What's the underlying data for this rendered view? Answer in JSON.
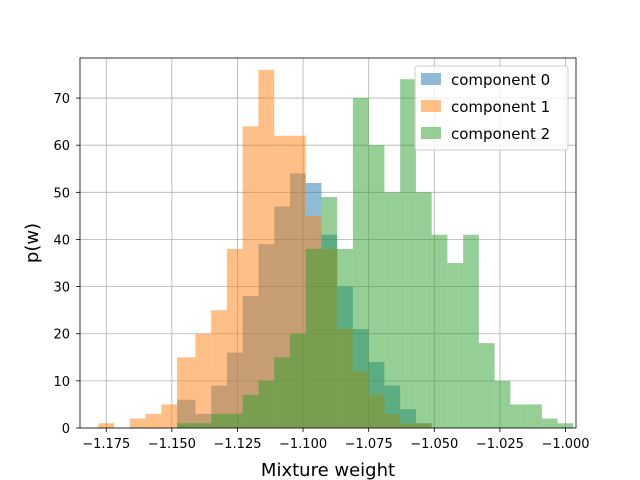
{
  "chart_data": {
    "type": "histogram",
    "xlabel": "Mixture weight",
    "ylabel": "p(w)",
    "xlim": [
      -1.185,
      -0.996
    ],
    "ylim": [
      0,
      78.5
    ],
    "xticks": [
      -1.175,
      -1.15,
      -1.125,
      -1.1,
      -1.075,
      -1.05,
      -1.025,
      -1.0
    ],
    "xtick_labels": [
      "−1.175",
      "−1.150",
      "−1.125",
      "−1.100",
      "−1.075",
      "−1.050",
      "−1.025",
      "−1.000"
    ],
    "yticks": [
      0,
      10,
      20,
      30,
      40,
      50,
      60,
      70
    ],
    "ytick_labels": [
      "0",
      "10",
      "20",
      "30",
      "40",
      "50",
      "60",
      "70"
    ],
    "grid": true,
    "legend_position": "top-right",
    "alpha": 0.5,
    "series": [
      {
        "name": "component 0",
        "color": "#1f77b4",
        "bins": [
          [
            -1.148,
            -1.141,
            6
          ],
          [
            -1.141,
            -1.135,
            3
          ],
          [
            -1.135,
            -1.129,
            9
          ],
          [
            -1.129,
            -1.123,
            16
          ],
          [
            -1.123,
            -1.117,
            28
          ],
          [
            -1.117,
            -1.111,
            39
          ],
          [
            -1.111,
            -1.105,
            47
          ],
          [
            -1.105,
            -1.099,
            54
          ],
          [
            -1.099,
            -1.093,
            52
          ],
          [
            -1.093,
            -1.087,
            41
          ],
          [
            -1.087,
            -1.081,
            30
          ],
          [
            -1.081,
            -1.075,
            21
          ],
          [
            -1.075,
            -1.069,
            14
          ],
          [
            -1.069,
            -1.063,
            9
          ],
          [
            -1.063,
            -1.057,
            4
          ],
          [
            -1.057,
            -1.051,
            1
          ]
        ]
      },
      {
        "name": "component 1",
        "color": "#ff7f0e",
        "bins": [
          [
            -1.178,
            -1.172,
            1
          ],
          [
            -1.172,
            -1.166,
            0
          ],
          [
            -1.166,
            -1.16,
            2
          ],
          [
            -1.16,
            -1.154,
            3
          ],
          [
            -1.154,
            -1.148,
            5
          ],
          [
            -1.148,
            -1.141,
            15
          ],
          [
            -1.141,
            -1.135,
            20
          ],
          [
            -1.135,
            -1.129,
            25
          ],
          [
            -1.129,
            -1.123,
            38
          ],
          [
            -1.123,
            -1.117,
            64
          ],
          [
            -1.117,
            -1.111,
            76
          ],
          [
            -1.111,
            -1.105,
            62
          ],
          [
            -1.105,
            -1.099,
            62
          ],
          [
            -1.099,
            -1.093,
            45
          ],
          [
            -1.093,
            -1.087,
            38
          ],
          [
            -1.087,
            -1.081,
            21
          ],
          [
            -1.081,
            -1.075,
            12
          ],
          [
            -1.075,
            -1.069,
            7
          ],
          [
            -1.069,
            -1.063,
            3
          ],
          [
            -1.063,
            -1.057,
            1
          ],
          [
            -1.057,
            -1.051,
            1
          ]
        ]
      },
      {
        "name": "component 2",
        "color": "#2ca02c",
        "bins": [
          [
            -1.148,
            -1.141,
            1
          ],
          [
            -1.141,
            -1.135,
            1
          ],
          [
            -1.135,
            -1.129,
            3
          ],
          [
            -1.129,
            -1.123,
            3
          ],
          [
            -1.123,
            -1.117,
            7
          ],
          [
            -1.117,
            -1.111,
            10
          ],
          [
            -1.111,
            -1.105,
            15
          ],
          [
            -1.105,
            -1.099,
            20
          ],
          [
            -1.099,
            -1.093,
            38
          ],
          [
            -1.093,
            -1.087,
            49
          ],
          [
            -1.087,
            -1.081,
            38
          ],
          [
            -1.081,
            -1.075,
            70
          ],
          [
            -1.075,
            -1.069,
            60
          ],
          [
            -1.069,
            -1.063,
            50
          ],
          [
            -1.063,
            -1.057,
            74
          ],
          [
            -1.057,
            -1.051,
            50
          ],
          [
            -1.051,
            -1.045,
            41
          ],
          [
            -1.045,
            -1.039,
            35
          ],
          [
            -1.039,
            -1.033,
            41
          ],
          [
            -1.033,
            -1.027,
            18
          ],
          [
            -1.027,
            -1.021,
            10
          ],
          [
            -1.021,
            -1.015,
            5
          ],
          [
            -1.015,
            -1.009,
            5
          ],
          [
            -1.009,
            -1.003,
            2
          ],
          [
            -1.003,
            -0.997,
            1
          ]
        ]
      }
    ]
  }
}
